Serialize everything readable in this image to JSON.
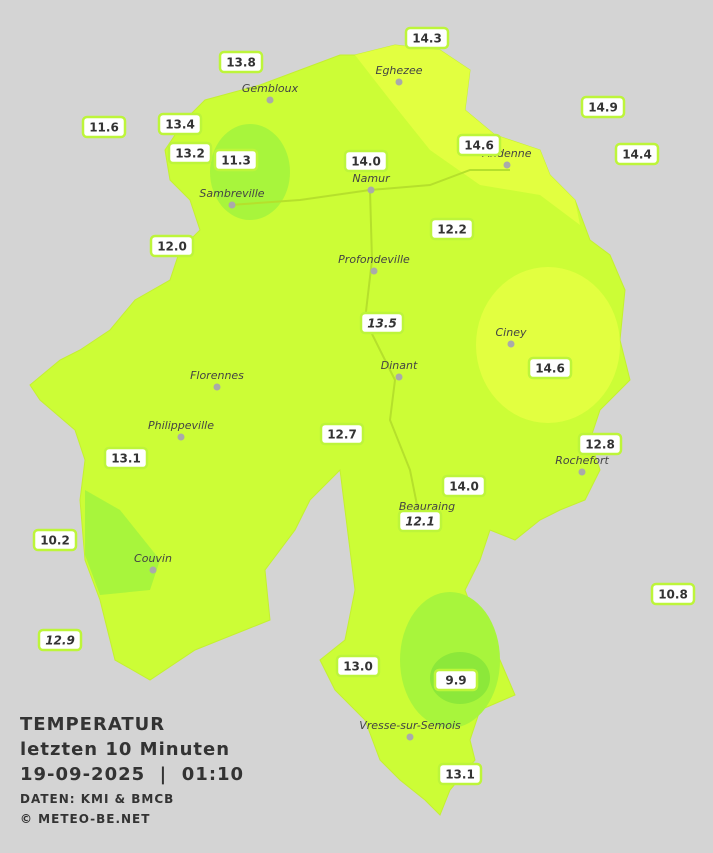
{
  "title": {
    "lines": [
      "TEMPERATUR",
      "letzten 10 Minuten",
      "19-09-2025  |  01:10"
    ],
    "source": "DATEN: KMI & BMCB",
    "copyright": "© METEO-BE.NET"
  },
  "cities": [
    "Eghezee",
    "Gembloux",
    "Andenne",
    "Namur",
    "Sambreville",
    "Profondeville",
    "Ciney",
    "Dinant",
    "Florennes",
    "Philippeville",
    "Rochefort",
    "Beauraing",
    "Couvin",
    "Vresse-sur-Semois"
  ],
  "stations": [
    {
      "value": "14.3"
    },
    {
      "value": "13.8"
    },
    {
      "value": "14.9"
    },
    {
      "value": "11.6"
    },
    {
      "value": "13.4"
    },
    {
      "value": "14.6"
    },
    {
      "value": "14.4"
    },
    {
      "value": "13.2"
    },
    {
      "value": "11.3"
    },
    {
      "value": "14.0"
    },
    {
      "value": "12.2"
    },
    {
      "value": "12.0"
    },
    {
      "value": "13.5",
      "italic": true
    },
    {
      "value": "14.6"
    },
    {
      "value": "12.7"
    },
    {
      "value": "12.8"
    },
    {
      "value": "13.1"
    },
    {
      "value": "14.0"
    },
    {
      "value": "12.1",
      "italic": true
    },
    {
      "value": "10.2"
    },
    {
      "value": "10.8"
    },
    {
      "value": "12.9",
      "italic": true
    },
    {
      "value": "13.0"
    },
    {
      "value": "9.9"
    },
    {
      "value": "13.1"
    }
  ]
}
